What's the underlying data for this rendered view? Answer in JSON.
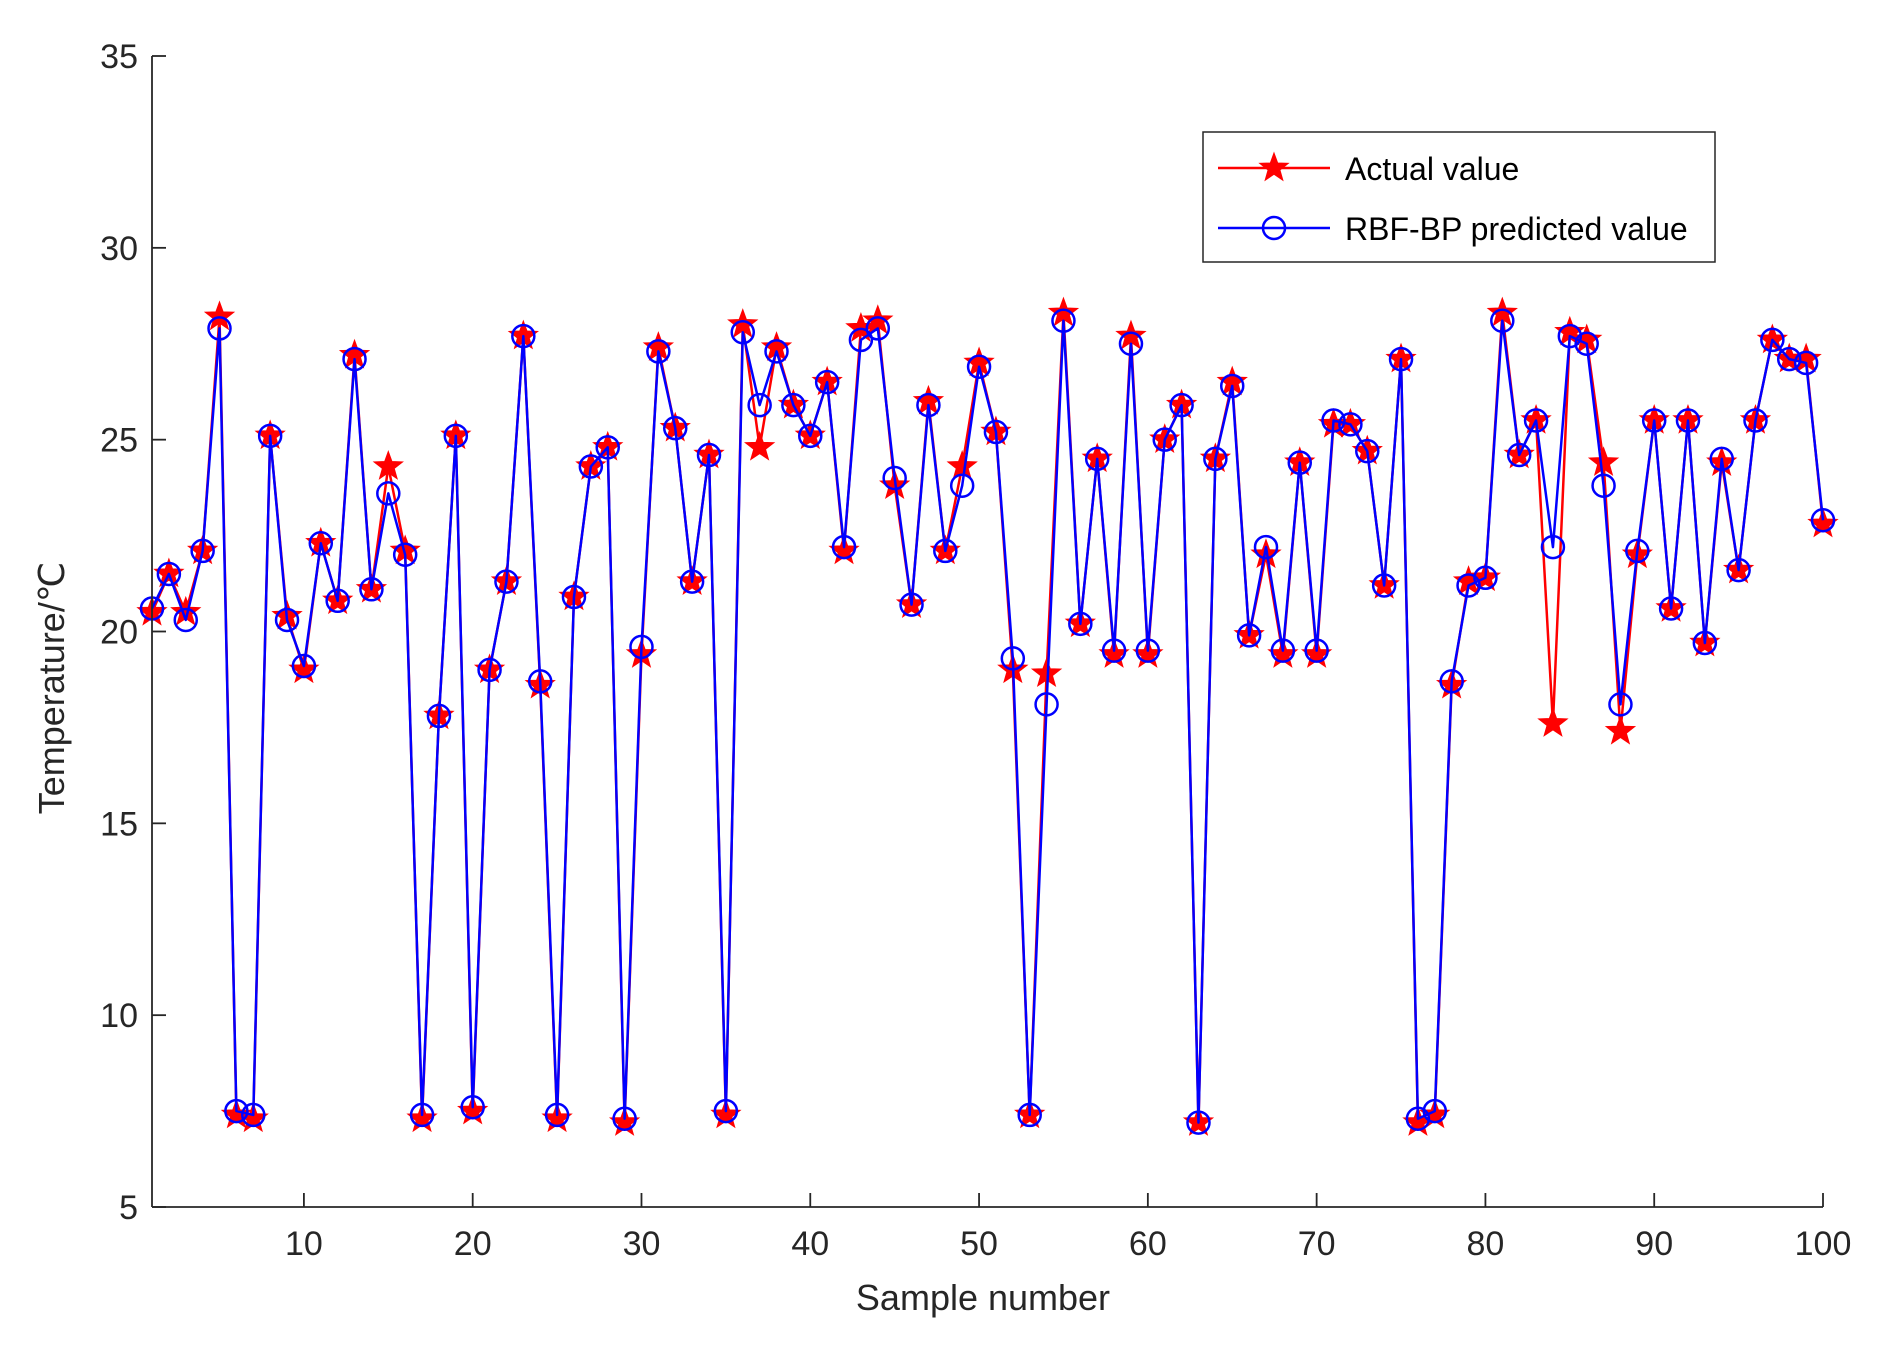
{
  "chart_data": {
    "type": "line",
    "title": "",
    "xlabel": "Sample number",
    "ylabel": "Temperature/℃",
    "xlim": [
      1,
      100
    ],
    "ylim": [
      5,
      35
    ],
    "xticks": [
      10,
      20,
      30,
      40,
      50,
      60,
      70,
      80,
      90,
      100
    ],
    "yticks": [
      5,
      10,
      15,
      20,
      25,
      30,
      35
    ],
    "grid": false,
    "legend_position": "top-right",
    "series": [
      {
        "name": "Actual value",
        "color": "#ff0000",
        "marker": "star",
        "values": [
          20.5,
          21.5,
          20.5,
          22.1,
          28.2,
          7.4,
          7.3,
          25.1,
          20.4,
          19.0,
          22.3,
          20.8,
          27.2,
          21.1,
          24.3,
          22.1,
          7.3,
          17.8,
          25.1,
          7.5,
          19.0,
          21.3,
          27.7,
          18.6,
          7.3,
          20.9,
          24.3,
          24.8,
          7.2,
          19.4,
          27.4,
          25.3,
          21.3,
          24.6,
          7.4,
          28.0,
          24.8,
          27.4,
          25.9,
          25.1,
          26.5,
          22.1,
          27.9,
          28.1,
          23.8,
          20.7,
          26.0,
          22.1,
          24.3,
          27.0,
          25.2,
          19.0,
          7.4,
          18.9,
          28.3,
          20.2,
          24.5,
          19.4,
          27.7,
          19.4,
          25.0,
          25.9,
          7.2,
          24.5,
          26.5,
          19.9,
          22.0,
          19.4,
          24.4,
          19.4,
          25.4,
          25.4,
          24.7,
          21.2,
          27.1,
          7.2,
          7.4,
          18.6,
          21.3,
          21.4,
          28.3,
          24.6,
          25.5,
          17.6,
          27.8,
          27.6,
          24.4,
          17.4,
          22.0,
          25.5,
          20.6,
          25.5,
          19.7,
          24.4,
          21.6,
          25.5,
          27.6,
          27.1,
          27.1,
          22.8
        ]
      },
      {
        "name": "RBF-BP predicted value",
        "color": "#0000ff",
        "marker": "circle",
        "values": [
          20.6,
          21.5,
          20.3,
          22.1,
          27.9,
          7.5,
          7.4,
          25.1,
          20.3,
          19.1,
          22.3,
          20.8,
          27.1,
          21.1,
          23.6,
          22.0,
          7.4,
          17.8,
          25.1,
          7.6,
          19.0,
          21.3,
          27.7,
          18.7,
          7.4,
          20.9,
          24.3,
          24.8,
          7.3,
          19.6,
          27.3,
          25.3,
          21.3,
          24.6,
          7.5,
          27.8,
          25.9,
          27.3,
          25.9,
          25.1,
          26.5,
          22.2,
          27.6,
          27.9,
          24.0,
          20.7,
          25.9,
          22.1,
          23.8,
          26.9,
          25.2,
          19.3,
          7.4,
          18.1,
          28.1,
          20.2,
          24.5,
          19.5,
          27.5,
          19.5,
          25.0,
          25.9,
          7.2,
          24.5,
          26.4,
          19.9,
          22.2,
          19.5,
          24.4,
          19.5,
          25.5,
          25.4,
          24.7,
          21.2,
          27.1,
          7.3,
          7.5,
          18.7,
          21.2,
          21.4,
          28.1,
          24.6,
          25.5,
          22.2,
          27.7,
          27.5,
          23.8,
          18.1,
          22.1,
          25.5,
          20.6,
          25.5,
          19.7,
          24.5,
          21.6,
          25.5,
          27.6,
          27.1,
          27.0,
          22.9
        ]
      }
    ]
  }
}
